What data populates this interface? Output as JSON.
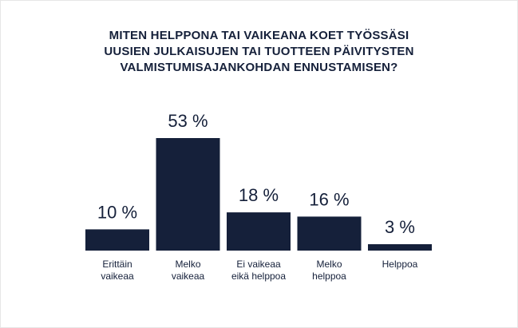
{
  "chart_data": {
    "type": "bar",
    "title_lines": [
      "MITEN HELPPONA TAI VAIKEANA KOET TYÖSSÄSI",
      "UUSIEN JULKAISUJEN TAI TUOTTEEN PÄIVITYSTEN",
      "VALMISTUMISAJANKOHDAN ENNUSTAMISEN?"
    ],
    "categories": [
      [
        "Erittäin",
        "vaikeaa"
      ],
      [
        "Melko",
        "vaikeaa"
      ],
      [
        "Ei vaikeaa",
        "eikä helppoa"
      ],
      [
        "Melko",
        "helppoa"
      ],
      [
        "Helppoa"
      ]
    ],
    "values": [
      10,
      53,
      18,
      16,
      3
    ],
    "value_labels": [
      "10 %",
      "53 %",
      "18 %",
      "16 %",
      "3 %"
    ],
    "unit": "%",
    "ylim": [
      0,
      53
    ],
    "grid": false,
    "legend": "none",
    "bar_color": "#15203a"
  }
}
